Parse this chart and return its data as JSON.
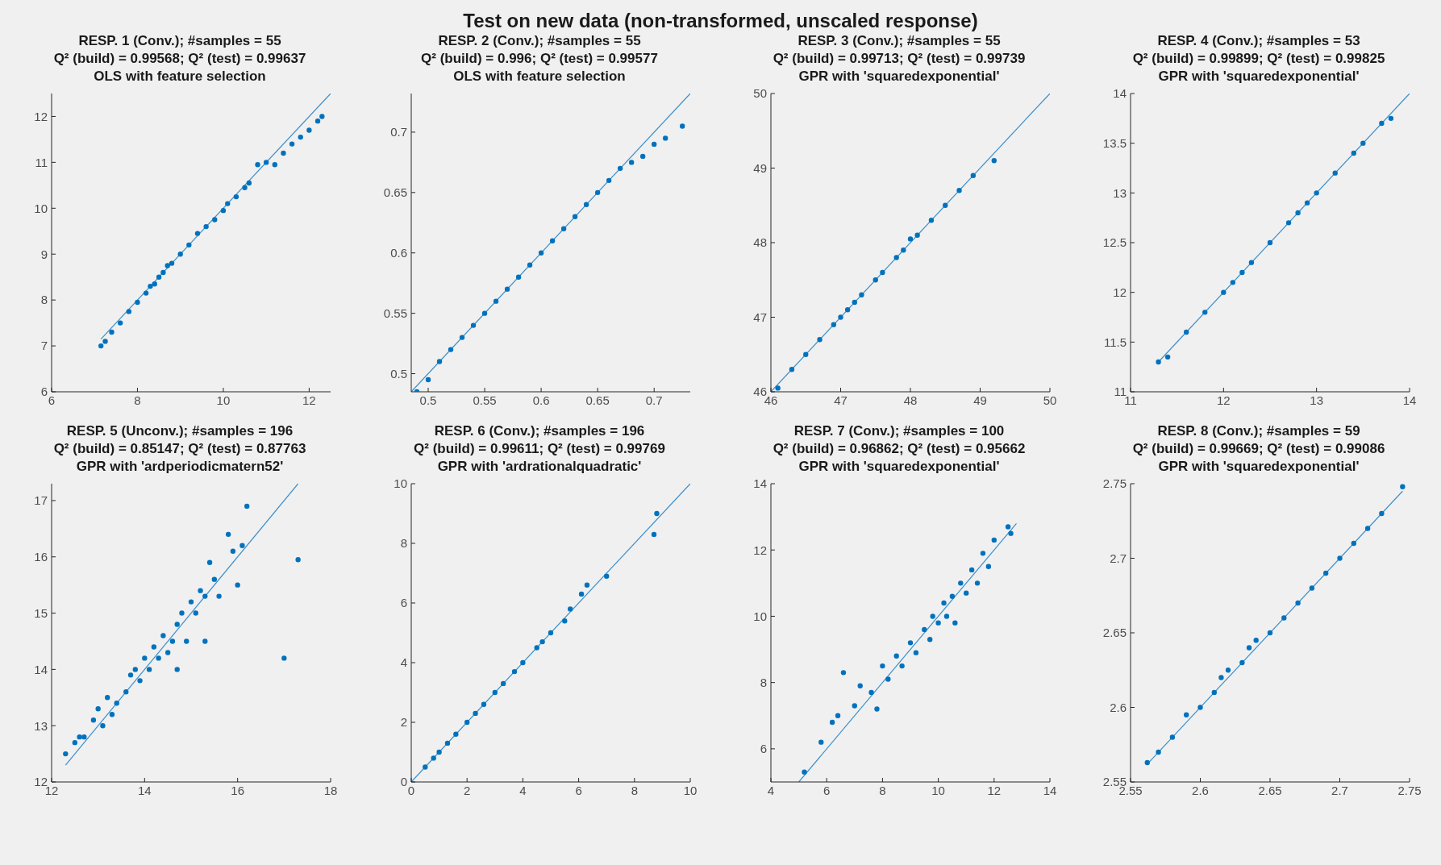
{
  "chart_data": [
    {
      "type": "scatter",
      "title": "RESP. 1 (Conv.); #samples = 55",
      "subtitle": "Q² (build) = 0.99568; Q² (test) = 0.99637\nOLS with feature selection",
      "annotations": [
        "Test on new data (non-transformed, unscaled response)"
      ],
      "xlim": [
        6,
        12.5
      ],
      "ylim": [
        6,
        12.5
      ],
      "xticks": [
        6,
        8,
        10,
        12
      ],
      "yticks": [
        6,
        7,
        8,
        9,
        10,
        11,
        12
      ],
      "series": [
        {
          "type": "scatter",
          "marker": "circle",
          "color": "#0072bd",
          "x": [
            7.15,
            7.25,
            7.4,
            7.6,
            7.8,
            8.0,
            8.2,
            8.3,
            8.4,
            8.5,
            8.6,
            8.7,
            8.8,
            9.0,
            9.2,
            9.4,
            9.6,
            9.8,
            10.0,
            10.1,
            10.3,
            10.5,
            10.6,
            10.8,
            11.0,
            11.2,
            11.4,
            11.6,
            11.8,
            12.0,
            12.2,
            12.3
          ],
          "values": [
            7.0,
            7.1,
            7.3,
            7.5,
            7.75,
            7.95,
            8.15,
            8.3,
            8.35,
            8.5,
            8.6,
            8.75,
            8.8,
            9.0,
            9.2,
            9.45,
            9.6,
            9.75,
            9.95,
            10.1,
            10.25,
            10.45,
            10.55,
            10.95,
            11.0,
            10.95,
            11.2,
            11.4,
            11.55,
            11.7,
            11.9,
            12.0
          ]
        },
        {
          "type": "line",
          "color": "#3a8fcb",
          "x": [
            7.15,
            12.5
          ],
          "values": [
            7.15,
            12.5
          ]
        }
      ]
    },
    {
      "type": "scatter",
      "title": "RESP. 2 (Conv.); #samples = 55",
      "subtitle": "Q² (build) = 0.996; Q² (test) = 0.99577\nOLS with feature selection",
      "xlim": [
        0.485,
        0.732
      ],
      "ylim": [
        0.485,
        0.732
      ],
      "xticks": [
        0.5,
        0.55,
        0.6,
        0.65,
        0.7
      ],
      "yticks": [
        0.5,
        0.55,
        0.6,
        0.65,
        0.7
      ],
      "series": [
        {
          "type": "scatter",
          "marker": "circle",
          "color": "#0072bd",
          "x": [
            0.49,
            0.5,
            0.51,
            0.52,
            0.53,
            0.54,
            0.55,
            0.56,
            0.57,
            0.58,
            0.59,
            0.6,
            0.61,
            0.62,
            0.63,
            0.64,
            0.65,
            0.66,
            0.67,
            0.68,
            0.69,
            0.7,
            0.71,
            0.725
          ],
          "values": [
            0.485,
            0.495,
            0.51,
            0.52,
            0.53,
            0.54,
            0.55,
            0.56,
            0.57,
            0.58,
            0.59,
            0.6,
            0.61,
            0.62,
            0.63,
            0.64,
            0.65,
            0.66,
            0.67,
            0.675,
            0.68,
            0.69,
            0.695,
            0.705
          ]
        },
        {
          "type": "line",
          "color": "#3a8fcb",
          "x": [
            0.485,
            0.732
          ],
          "values": [
            0.485,
            0.732
          ]
        }
      ]
    },
    {
      "type": "scatter",
      "title": "RESP. 3 (Conv.); #samples = 55",
      "subtitle": "Q² (build) = 0.99713; Q² (test) = 0.99739\nGPR with 'squaredexponential'",
      "xlim": [
        46,
        50
      ],
      "ylim": [
        46,
        50
      ],
      "xticks": [
        46,
        47,
        48,
        49,
        50
      ],
      "yticks": [
        46,
        47,
        48,
        49,
        50
      ],
      "series": [
        {
          "type": "scatter",
          "marker": "circle",
          "color": "#0072bd",
          "x": [
            46.1,
            46.3,
            46.5,
            46.7,
            46.9,
            47.0,
            47.1,
            47.2,
            47.3,
            47.5,
            47.6,
            47.8,
            47.9,
            48.0,
            48.1,
            48.3,
            48.5,
            48.7,
            48.9,
            49.2
          ],
          "values": [
            46.05,
            46.3,
            46.5,
            46.7,
            46.9,
            47.0,
            47.1,
            47.2,
            47.3,
            47.5,
            47.6,
            47.8,
            47.9,
            48.05,
            48.1,
            48.3,
            48.5,
            48.7,
            48.9,
            49.1
          ]
        },
        {
          "type": "line",
          "color": "#3a8fcb",
          "x": [
            46,
            50
          ],
          "values": [
            46,
            50
          ]
        }
      ]
    },
    {
      "type": "scatter",
      "title": "RESP. 4 (Conv.); #samples = 53",
      "subtitle": "Q² (build) = 0.99899; Q² (test) = 0.99825\nGPR with 'squaredexponential'",
      "xlim": [
        11,
        14
      ],
      "ylim": [
        11,
        14
      ],
      "xticks": [
        11,
        12,
        13,
        14
      ],
      "yticks": [
        11,
        11.5,
        12,
        12.5,
        13,
        13.5,
        14
      ],
      "series": [
        {
          "type": "scatter",
          "marker": "circle",
          "color": "#0072bd",
          "x": [
            11.3,
            11.4,
            11.6,
            11.8,
            12.0,
            12.1,
            12.2,
            12.3,
            12.5,
            12.7,
            12.8,
            12.9,
            13.0,
            13.2,
            13.4,
            13.5,
            13.7,
            13.8
          ],
          "values": [
            11.3,
            11.35,
            11.6,
            11.8,
            12.0,
            12.1,
            12.2,
            12.3,
            12.5,
            12.7,
            12.8,
            12.9,
            13.0,
            13.2,
            13.4,
            13.5,
            13.7,
            13.75
          ]
        },
        {
          "type": "line",
          "color": "#3a8fcb",
          "x": [
            11.3,
            14
          ],
          "values": [
            11.3,
            14
          ]
        }
      ]
    },
    {
      "type": "scatter",
      "title": "RESP. 5 (Unconv.); #samples = 196",
      "subtitle": "Q² (build) = 0.85147; Q² (test) = 0.87763\nGPR with 'ardperiodicmatern52'",
      "xlim": [
        12,
        18
      ],
      "ylim": [
        12,
        17.3
      ],
      "xticks": [
        12,
        14,
        16,
        18
      ],
      "yticks": [
        12,
        13,
        14,
        15,
        16,
        17
      ],
      "series": [
        {
          "type": "scatter",
          "marker": "circle",
          "color": "#0072bd",
          "x": [
            12.3,
            12.5,
            12.6,
            12.7,
            12.9,
            13.0,
            13.1,
            13.2,
            13.3,
            13.4,
            13.6,
            13.7,
            13.8,
            13.9,
            14.0,
            14.1,
            14.2,
            14.3,
            14.4,
            14.5,
            14.6,
            14.7,
            14.7,
            14.8,
            14.9,
            15.0,
            15.1,
            15.2,
            15.3,
            15.3,
            15.4,
            15.5,
            15.6,
            15.8,
            15.9,
            16.0,
            16.1,
            16.2,
            17.0,
            17.3
          ],
          "values": [
            12.5,
            12.7,
            12.8,
            12.8,
            13.1,
            13.3,
            13.0,
            13.5,
            13.2,
            13.4,
            13.6,
            13.9,
            14.0,
            13.8,
            14.2,
            14.0,
            14.4,
            14.2,
            14.6,
            14.3,
            14.5,
            14.8,
            14.0,
            15.0,
            14.5,
            15.2,
            15.0,
            15.4,
            15.3,
            14.5,
            15.9,
            15.6,
            15.3,
            16.4,
            16.1,
            15.5,
            16.2,
            16.9,
            14.2,
            15.95
          ]
        },
        {
          "type": "line",
          "color": "#3a8fcb",
          "x": [
            12.3,
            17.3
          ],
          "values": [
            12.3,
            17.3
          ]
        }
      ]
    },
    {
      "type": "scatter",
      "title": "RESP. 6 (Conv.); #samples = 196",
      "subtitle": "Q² (build) = 0.99611; Q² (test) = 0.99769\nGPR with 'ardrationalquadratic'",
      "xlim": [
        0,
        10
      ],
      "ylim": [
        0,
        10
      ],
      "xticks": [
        0,
        2,
        4,
        6,
        8,
        10
      ],
      "yticks": [
        0,
        2,
        4,
        6,
        8,
        10
      ],
      "series": [
        {
          "type": "scatter",
          "marker": "circle",
          "color": "#0072bd",
          "x": [
            0.5,
            0.8,
            1,
            1.3,
            1.6,
            2,
            2.3,
            2.6,
            3,
            3.3,
            3.7,
            4,
            4.5,
            4.7,
            5,
            5.5,
            5.7,
            6.1,
            6.3,
            7,
            8.7,
            8.8
          ],
          "values": [
            0.5,
            0.8,
            1,
            1.3,
            1.6,
            2,
            2.3,
            2.6,
            3,
            3.3,
            3.7,
            4,
            4.5,
            4.7,
            5,
            5.4,
            5.8,
            6.3,
            6.6,
            6.9,
            8.3,
            9.0
          ]
        },
        {
          "type": "line",
          "color": "#3a8fcb",
          "x": [
            0,
            10
          ],
          "values": [
            0,
            10
          ]
        }
      ]
    },
    {
      "type": "scatter",
      "title": "RESP. 7 (Conv.); #samples = 100",
      "subtitle": "Q² (build) = 0.96862; Q² (test) = 0.95662\nGPR with 'squaredexponential'",
      "xlim": [
        4,
        14
      ],
      "ylim": [
        5,
        14
      ],
      "xticks": [
        4,
        6,
        8,
        10,
        12,
        14
      ],
      "yticks": [
        6,
        8,
        10,
        12,
        14
      ],
      "series": [
        {
          "type": "scatter",
          "marker": "circle",
          "color": "#0072bd",
          "x": [
            5.2,
            5.8,
            6.2,
            6.4,
            6.6,
            7.0,
            7.2,
            7.6,
            7.8,
            8.0,
            8.2,
            8.5,
            8.7,
            9.0,
            9.2,
            9.5,
            9.7,
            9.8,
            10.0,
            10.2,
            10.3,
            10.5,
            10.6,
            10.8,
            11.0,
            11.2,
            11.4,
            11.6,
            11.8,
            12.0,
            12.5,
            12.6
          ],
          "values": [
            5.3,
            6.2,
            6.8,
            7.0,
            8.3,
            7.3,
            7.9,
            7.7,
            7.2,
            8.5,
            8.1,
            8.8,
            8.5,
            9.2,
            8.9,
            9.6,
            9.3,
            10.0,
            9.8,
            10.4,
            10.0,
            10.6,
            9.8,
            11.0,
            10.7,
            11.4,
            11.0,
            11.9,
            11.5,
            12.3,
            12.7,
            12.5
          ]
        },
        {
          "type": "line",
          "color": "#3a8fcb",
          "x": [
            5,
            12.8
          ],
          "values": [
            5,
            12.8
          ]
        }
      ]
    },
    {
      "type": "scatter",
      "title": "RESP. 8 (Conv.); #samples = 59",
      "subtitle": "Q² (build) = 0.99669; Q² (test) = 0.99086\nGPR with 'squaredexponential'",
      "xlim": [
        2.55,
        2.75
      ],
      "ylim": [
        2.55,
        2.75
      ],
      "xticks": [
        2.55,
        2.6,
        2.65,
        2.7,
        2.75
      ],
      "yticks": [
        2.55,
        2.6,
        2.65,
        2.7,
        2.75
      ],
      "series": [
        {
          "type": "scatter",
          "marker": "circle",
          "color": "#0072bd",
          "x": [
            2.562,
            2.57,
            2.58,
            2.59,
            2.6,
            2.61,
            2.615,
            2.62,
            2.63,
            2.635,
            2.64,
            2.65,
            2.66,
            2.67,
            2.68,
            2.69,
            2.7,
            2.71,
            2.72,
            2.73,
            2.745
          ],
          "values": [
            2.563,
            2.57,
            2.58,
            2.595,
            2.6,
            2.61,
            2.62,
            2.625,
            2.63,
            2.64,
            2.645,
            2.65,
            2.66,
            2.67,
            2.68,
            2.69,
            2.7,
            2.71,
            2.72,
            2.73,
            2.748
          ]
        },
        {
          "type": "line",
          "color": "#3a8fcb",
          "x": [
            2.562,
            2.745
          ],
          "values": [
            2.562,
            2.745
          ]
        }
      ]
    }
  ]
}
